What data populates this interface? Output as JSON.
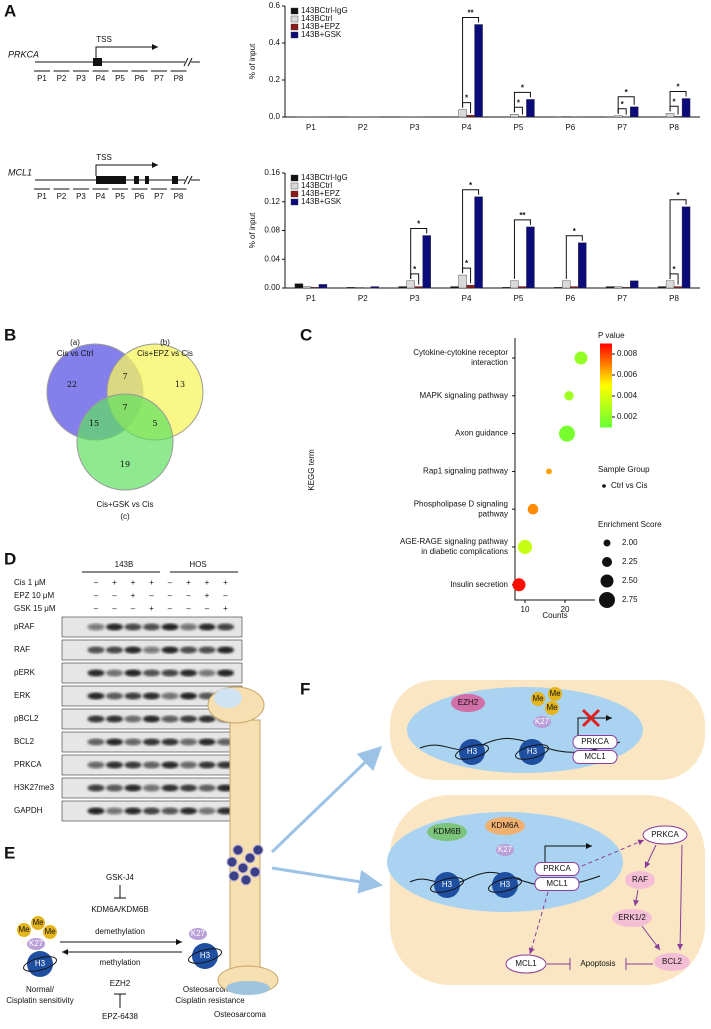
{
  "panel_labels": [
    "A",
    "B",
    "C",
    "D",
    "E",
    "F"
  ],
  "gene_diagrams": [
    {
      "gene": "PRKCA",
      "tss": "TSS",
      "regions": [
        "P1",
        "P2",
        "P3",
        "P4",
        "P5",
        "P6",
        "P7",
        "P8"
      ]
    },
    {
      "gene": "MCL1",
      "tss": "TSS",
      "regions": [
        "P1",
        "P2",
        "P3",
        "P4",
        "P5",
        "P6",
        "P7",
        "P8"
      ]
    }
  ],
  "chart_data": [
    {
      "type": "bar",
      "y_label": "% of input",
      "categories": [
        "P1",
        "P2",
        "P3",
        "P4",
        "P5",
        "P6",
        "P7",
        "P8"
      ],
      "series": [
        {
          "name": "143BCtrl-IgG",
          "color": "#111111",
          "values": [
            0.001,
            0.001,
            0.001,
            0.002,
            0.002,
            0.001,
            0.001,
            0.002
          ]
        },
        {
          "name": "143BCtrl",
          "color": "#d9d9d9",
          "values": [
            0.001,
            0.001,
            0.001,
            0.04,
            0.015,
            0.003,
            0.007,
            0.02
          ]
        },
        {
          "name": "143B+EPZ",
          "color": "#8b1a1a",
          "values": [
            0.001,
            0.001,
            0.001,
            0.01,
            0.003,
            0.001,
            0.002,
            0.003
          ]
        },
        {
          "name": "143B+GSK",
          "color": "#0b0b7a",
          "values": [
            0.001,
            0.001,
            0.002,
            0.5,
            0.095,
            0.002,
            0.055,
            0.1
          ]
        }
      ],
      "significance": [
        [],
        [],
        [],
        [
          "*",
          "**"
        ],
        [
          "*",
          "*"
        ],
        [],
        [
          "*",
          "*"
        ],
        [
          "*",
          "*"
        ]
      ],
      "ylim": [
        0,
        0.6
      ],
      "yticks": [
        {
          "value": 0,
          "label": "0.0"
        },
        0.2,
        0.4,
        0.6
      ]
    },
    {
      "type": "bar",
      "y_label": "% of input",
      "categories": [
        "P1",
        "P2",
        "P3",
        "P4",
        "P5",
        "P6",
        "P7",
        "P8"
      ],
      "series": [
        {
          "name": "143BCtrl-IgG",
          "color": "#111111",
          "values": [
            0.006,
            0.001,
            0.002,
            0.002,
            0.001,
            0.001,
            0.002,
            0.002
          ]
        },
        {
          "name": "143BCtrl",
          "color": "#d9d9d9",
          "values": [
            0.002,
            0.001,
            0.01,
            0.018,
            0.01,
            0.01,
            0.002,
            0.01
          ]
        },
        {
          "name": "143B+EPZ",
          "color": "#8b1a1a",
          "values": [
            0.001,
            0.0005,
            0.002,
            0.004,
            0.002,
            0.002,
            0.001,
            0.002
          ]
        },
        {
          "name": "143B+GSK",
          "color": "#0b0b7a",
          "values": [
            0.005,
            0.002,
            0.073,
            0.127,
            0.085,
            0.063,
            0.01,
            0.113
          ]
        }
      ],
      "significance": [
        [],
        [],
        [
          "*",
          "*"
        ],
        [
          "*",
          "*"
        ],
        [
          "**"
        ],
        [
          "*"
        ],
        [],
        [
          "*",
          "*"
        ]
      ],
      "ylim": [
        0,
        0.16
      ],
      "yticks": [
        {
          "value": 0,
          "label": "0.00"
        },
        0.04,
        0.08,
        0.12,
        0.16
      ]
    },
    {
      "type": "bubble",
      "y_label": "KEGG term",
      "x_label": "Counts",
      "categories": [
        [
          "Cytokine-cytokine receptor",
          "interaction"
        ],
        [
          "MAPK signaling pathway"
        ],
        [
          "Axon guidance"
        ],
        [
          "Rap1 signaling pathway"
        ],
        [
          "Phospholipase D signaling",
          "pathway"
        ],
        [
          "AGE-RAGE signaling pathway",
          "in diabetic complications"
        ],
        [
          "Insulin secretion"
        ]
      ],
      "x": [
        24,
        21,
        20.5,
        16,
        12,
        10,
        8.5
      ],
      "p_values": [
        0.0022,
        0.0025,
        0.0015,
        0.0065,
        0.0068,
        0.0035,
        0.0088
      ],
      "sizes": [
        2.5,
        2.2,
        2.75,
        1.9,
        2.3,
        2.6,
        2.5
      ],
      "xlim": [
        7.5,
        27.5
      ],
      "xticks": [
        10,
        20
      ],
      "color_scale": {
        "title": "P value",
        "clim": [
          0.001,
          0.009
        ],
        "ticks": [
          0.002,
          0.004,
          0.006,
          0.008
        ]
      },
      "group_legend": {
        "title": "Sample Group",
        "name": "Ctrl vs Cis"
      },
      "size_scale": {
        "title": "Enrichment Score",
        "ticks": [
          {
            "value": 2,
            "label": "2.00"
          },
          2.25,
          {
            "value": 2.5,
            "label": "2.50"
          },
          2.75
        ]
      }
    }
  ],
  "venn": {
    "sets": [
      {
        "tag": "(a)",
        "name": "Cis vs Ctrl"
      },
      {
        "tag": "(b)",
        "name": "Cis+EPZ vs Cis"
      },
      {
        "tag": "(c)",
        "name": "Cis+GSK vs Cis"
      }
    ],
    "regions": {
      "a": 22,
      "b": 13,
      "c": 19,
      "ab": 7,
      "abc": 7,
      "ac": 15,
      "bc": 5
    }
  },
  "western_blot": {
    "cell_lines": [
      "143B",
      "HOS"
    ],
    "treatments": [
      {
        "name": "Cis 1  μM",
        "lanes": [
          "–",
          "+",
          "+",
          "+",
          "–",
          "+",
          "+",
          "+"
        ]
      },
      {
        "name": "EPZ 10  μM",
        "lanes": [
          "–",
          "–",
          "+",
          "–",
          "–",
          "–",
          "+",
          "–"
        ]
      },
      {
        "name": "GSK 15  μM",
        "lanes": [
          "–",
          "–",
          "–",
          "+",
          "–",
          "–",
          "–",
          "+"
        ]
      }
    ],
    "proteins": [
      "pRAF",
      "RAF",
      "pERK",
      "ERK",
      "pBCL2",
      "BCL2",
      "PRKCA",
      "H3K27me3",
      "GAPDH"
    ]
  },
  "schematic_e": {
    "inhibitor_top": "GSK-J4",
    "enzyme_top": "KDM6A/KDM6B",
    "forward": "demethylation",
    "backward": "methylation",
    "enzyme_bottom": "EZH2",
    "inhibitor_bottom": "EPZ-6438",
    "methyl": [
      "Me",
      "Me",
      "Me"
    ],
    "left": {
      "residue": "K27",
      "histone": "H3",
      "state": [
        "Normal/",
        "Cisplatin sensitivity"
      ]
    },
    "right": {
      "residue": "K27",
      "histone": "H3",
      "state": [
        "Osteosarcoma/",
        "Cisplatin resistance"
      ]
    }
  },
  "schematic_f": {
    "tissue": "Osteosarcoma",
    "top_cell": {
      "writer": "EZH2",
      "methyl": [
        "Me",
        "Me",
        "Me"
      ],
      "residue": "K27",
      "histones": [
        "H3",
        "H3"
      ],
      "genes": [
        "PRKCA",
        "MCL1"
      ]
    },
    "bottom_cell": {
      "erasers": [
        "KDM6B",
        "KDM6A"
      ],
      "residue": "K27",
      "histones": [
        "H3",
        "H3"
      ],
      "genes": [
        "PRKCA",
        "MCL1"
      ],
      "pathway": {
        "kinase": "PRKCA",
        "raf": "RAF",
        "erk": "ERK1/2",
        "bcl2": "BCL2",
        "mcl1": "MCL1",
        "outcome": "Apoptosis"
      }
    }
  }
}
